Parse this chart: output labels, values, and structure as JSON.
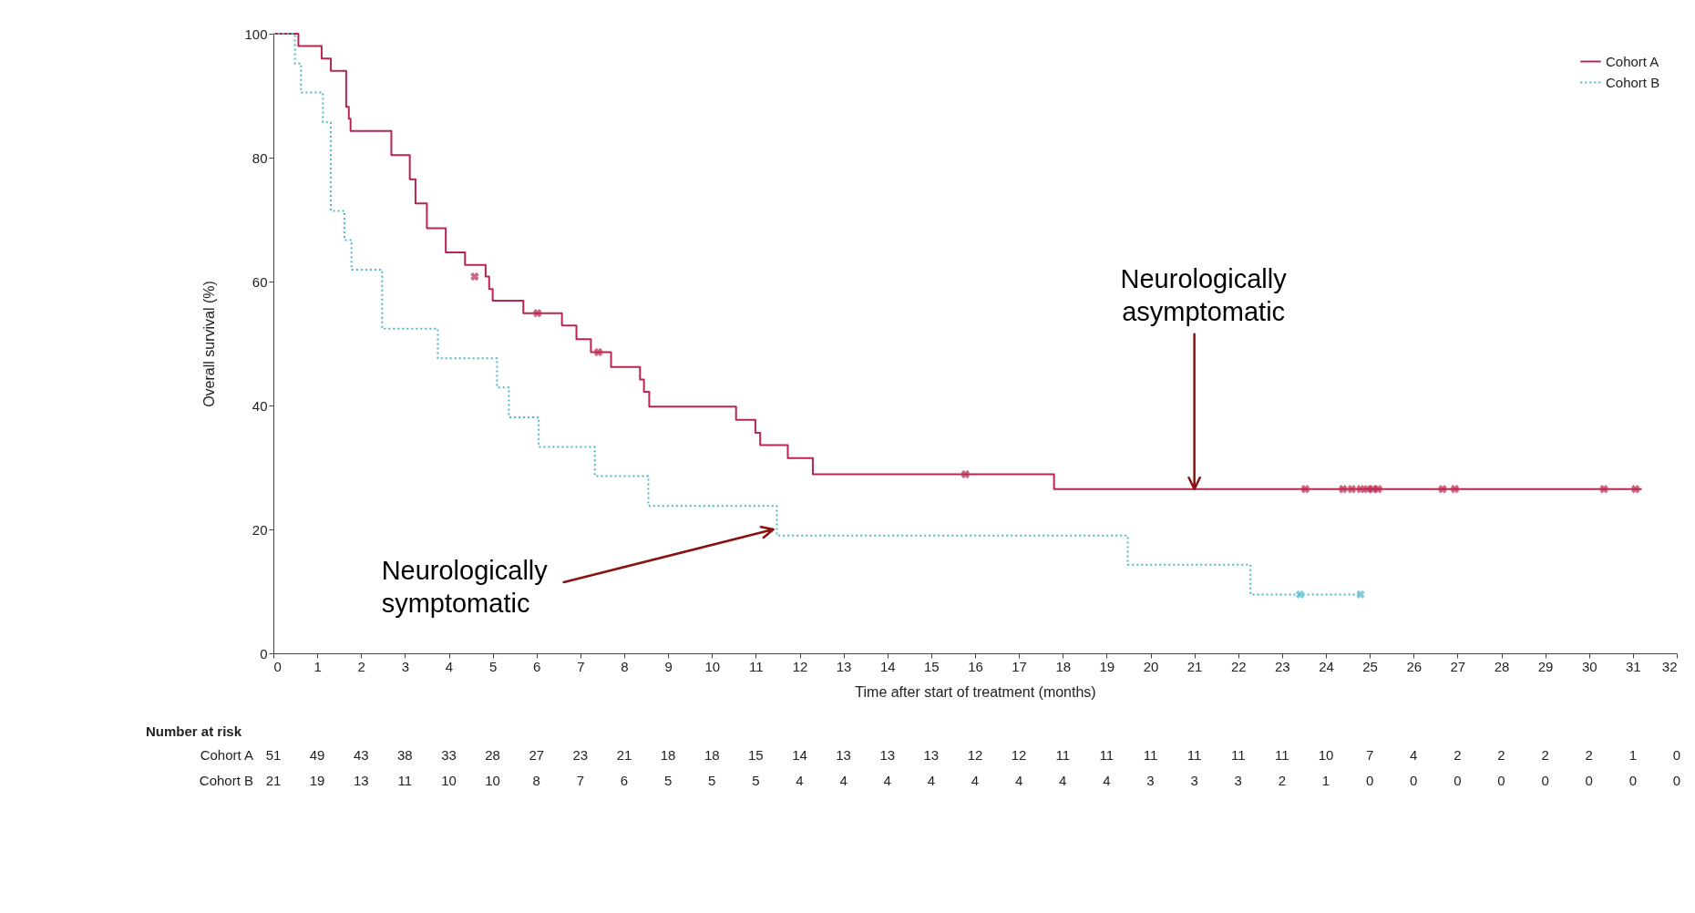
{
  "chart_data": {
    "type": "step",
    "xlabel": "Time after start of treatment (months)",
    "ylabel": "Overall survival (%)",
    "xlim": [
      0,
      32
    ],
    "xticks": [
      0,
      1,
      2,
      3,
      4,
      5,
      6,
      7,
      8,
      9,
      10,
      11,
      12,
      13,
      14,
      15,
      16,
      17,
      18,
      19,
      20,
      21,
      22,
      23,
      24,
      25,
      26,
      27,
      28,
      29,
      30,
      31,
      32
    ],
    "ylim": [
      0,
      100
    ],
    "yticks": [
      0,
      20,
      40,
      60,
      80,
      100
    ],
    "legend": "top right",
    "series": [
      {
        "name": "Cohort A",
        "color": "#b8264f",
        "line_style": "solid",
        "x": [
          0,
          0.57,
          1.1,
          1.31,
          1.66,
          1.72,
          1.76,
          2.69,
          3.11,
          3.24,
          3.5,
          3.93,
          4.37,
          4.84,
          4.92,
          5.0,
          5.7,
          6.58,
          6.91,
          7.24,
          7.7,
          8.36,
          8.45,
          8.57,
          10.55,
          10.99,
          11.1,
          11.73,
          12.3,
          17.8,
          31.2
        ],
        "values": [
          100,
          98,
          96,
          94,
          88.2,
          86.3,
          84.3,
          80.4,
          76.5,
          72.6,
          68.6,
          64.7,
          62.7,
          60.8,
          58.8,
          56.9,
          54.9,
          52.9,
          50.7,
          48.6,
          46.2,
          44.2,
          42.2,
          39.8,
          37.7,
          35.6,
          33.6,
          31.5,
          28.9,
          26.5,
          26.5
        ]
      },
      {
        "name": "Cohort B",
        "color": "#4db6c9",
        "line_style": "dotted",
        "x": [
          0,
          0.49,
          0.63,
          1.13,
          1.31,
          1.62,
          1.78,
          2.48,
          3.75,
          5.1,
          5.37,
          6.05,
          7.33,
          8.55,
          11.48,
          19.48,
          22.28,
          24.8
        ],
        "values": [
          100,
          95.2,
          90.5,
          85.7,
          71.4,
          66.7,
          61.9,
          52.4,
          47.6,
          42.9,
          38.1,
          33.3,
          28.6,
          23.8,
          19.0,
          14.3,
          9.5,
          9.5
        ]
      },
      {
        "type": "scatter",
        "marker": "cross",
        "color": "#b8264f",
        "x": [
          4.59,
          6.02,
          7.41,
          15.78,
          23.53,
          24.39,
          24.59,
          24.79,
          24.95,
          25.07,
          25.19,
          26.66,
          26.94,
          30.34,
          31.06
        ],
        "values": [
          60.8,
          54.9,
          48.6,
          28.9,
          26.5,
          26.5,
          26.5,
          26.5,
          26.5,
          26.5,
          26.5,
          26.5,
          26.5,
          26.5,
          26.5
        ]
      },
      {
        "type": "scatter",
        "marker": "cross",
        "color": "#4db6c9",
        "x": [
          23.41,
          24.79
        ],
        "values": [
          9.5,
          9.5
        ]
      }
    ],
    "annotations": [
      {
        "text": "Neurologically asymptomatic",
        "x": 21,
        "y": 26.5
      },
      {
        "text": "Neurologically symptomatic",
        "x": 11.4,
        "y": 20
      },
      "Number at risk",
      "51 49 43 38 33 28 27 23 21 18 18 15 14 13 13 13 12 12 11 11 11 11 11 11 10 7 4 2 2 2 2 1 0",
      "21 19 13 11 10 10 8 7 6 5 5 5 4 4 4 4 4 4 4 4 3 3 3 2 1 0 0 0 0 0 0 0 0"
    ]
  }
}
